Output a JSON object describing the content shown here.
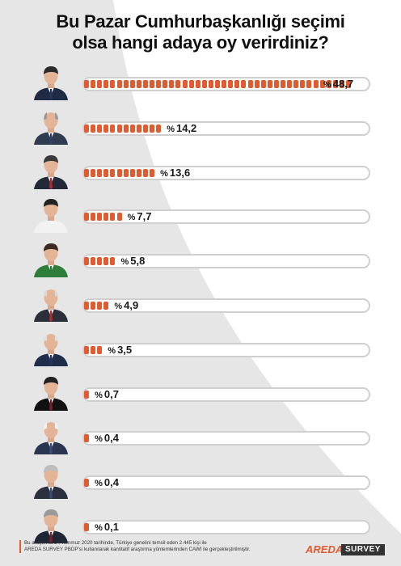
{
  "colors": {
    "accent": "#e25a2f",
    "track_border": "#cfcfcf",
    "background_shape": "#e6e6e6"
  },
  "header": {
    "title_line1": "Bu Pazar Cumhurbaşkanlığı seçimi",
    "title_line2": "olsa hangi adaya oy verirdiniz?"
  },
  "chart_data": {
    "type": "bar",
    "orientation": "horizontal",
    "value_prefix": "%",
    "categories": [
      "",
      "",
      "",
      "",
      "",
      "",
      "",
      "",
      "",
      "",
      ""
    ],
    "values": [
      48.7,
      14.2,
      13.6,
      7.7,
      5.8,
      4.9,
      3.5,
      0.7,
      0.4,
      0.4,
      0.1
    ],
    "labels": [
      "48,7",
      "14,2",
      "13,6",
      "7,7",
      "5,8",
      "4,9",
      "3,5",
      "0,7",
      "0,4",
      "0,4",
      "0,1"
    ],
    "xlim": [
      0,
      50
    ],
    "grid": false
  },
  "candidates": [
    {
      "photo": "candidate-photo",
      "suit": "#1f2a44",
      "tie": "#24345c",
      "hair": "#2b2b2b",
      "bald": false
    },
    {
      "photo": "candidate-photo",
      "suit": "#2f3b4f",
      "tie": "#30406a",
      "hair": "#9a9a9a",
      "bald": true
    },
    {
      "photo": "candidate-photo",
      "suit": "#222a3a",
      "tie": "#b02a30",
      "hair": "#3a3a3a",
      "bald": false
    },
    {
      "photo": "candidate-photo",
      "suit": "#f2f2f2",
      "tie": "#f2f2f2",
      "hair": "#222222",
      "bald": false
    },
    {
      "photo": "candidate-photo",
      "suit": "#2f7d3a",
      "tie": "#2f7d3a",
      "hair": "#3a2a22",
      "bald": false
    },
    {
      "photo": "candidate-photo",
      "suit": "#2a2f3a",
      "tie": "#b02a30",
      "hair": "#d9d9d9",
      "bald": true
    },
    {
      "photo": "candidate-photo",
      "suit": "#1f2e4a",
      "tie": "#24345c",
      "hair": "#e0e0e0",
      "bald": true
    },
    {
      "photo": "candidate-photo",
      "suit": "#111111",
      "tie": "#7a1f2a",
      "hair": "#222222",
      "bald": false
    },
    {
      "photo": "candidate-photo",
      "suit": "#2a3550",
      "tie": "#3a4a70",
      "hair": "#f0f0f0",
      "bald": true
    },
    {
      "photo": "candidate-photo",
      "suit": "#2a3040",
      "tie": "#3a4a70",
      "hair": "#bdbdbd",
      "bald": false
    },
    {
      "photo": "candidate-photo",
      "suit": "#1e2636",
      "tie": "#7a1f2a",
      "hair": "#9a9a9a",
      "bald": false
    }
  ],
  "footer": {
    "line1": "Bu araştırma 24 Temmuz 2020 tarihinde, Türkiye genelini temsil eden 2.445 kişi ile",
    "line2": "AREDA SURVEY PBDP'si kullanılarak kantitatif araştırma yöntemlerinden CAWI ile gerçekleştirilmiştir."
  },
  "logo": {
    "brand": "AREDA",
    "suffix": "SURVEY"
  }
}
